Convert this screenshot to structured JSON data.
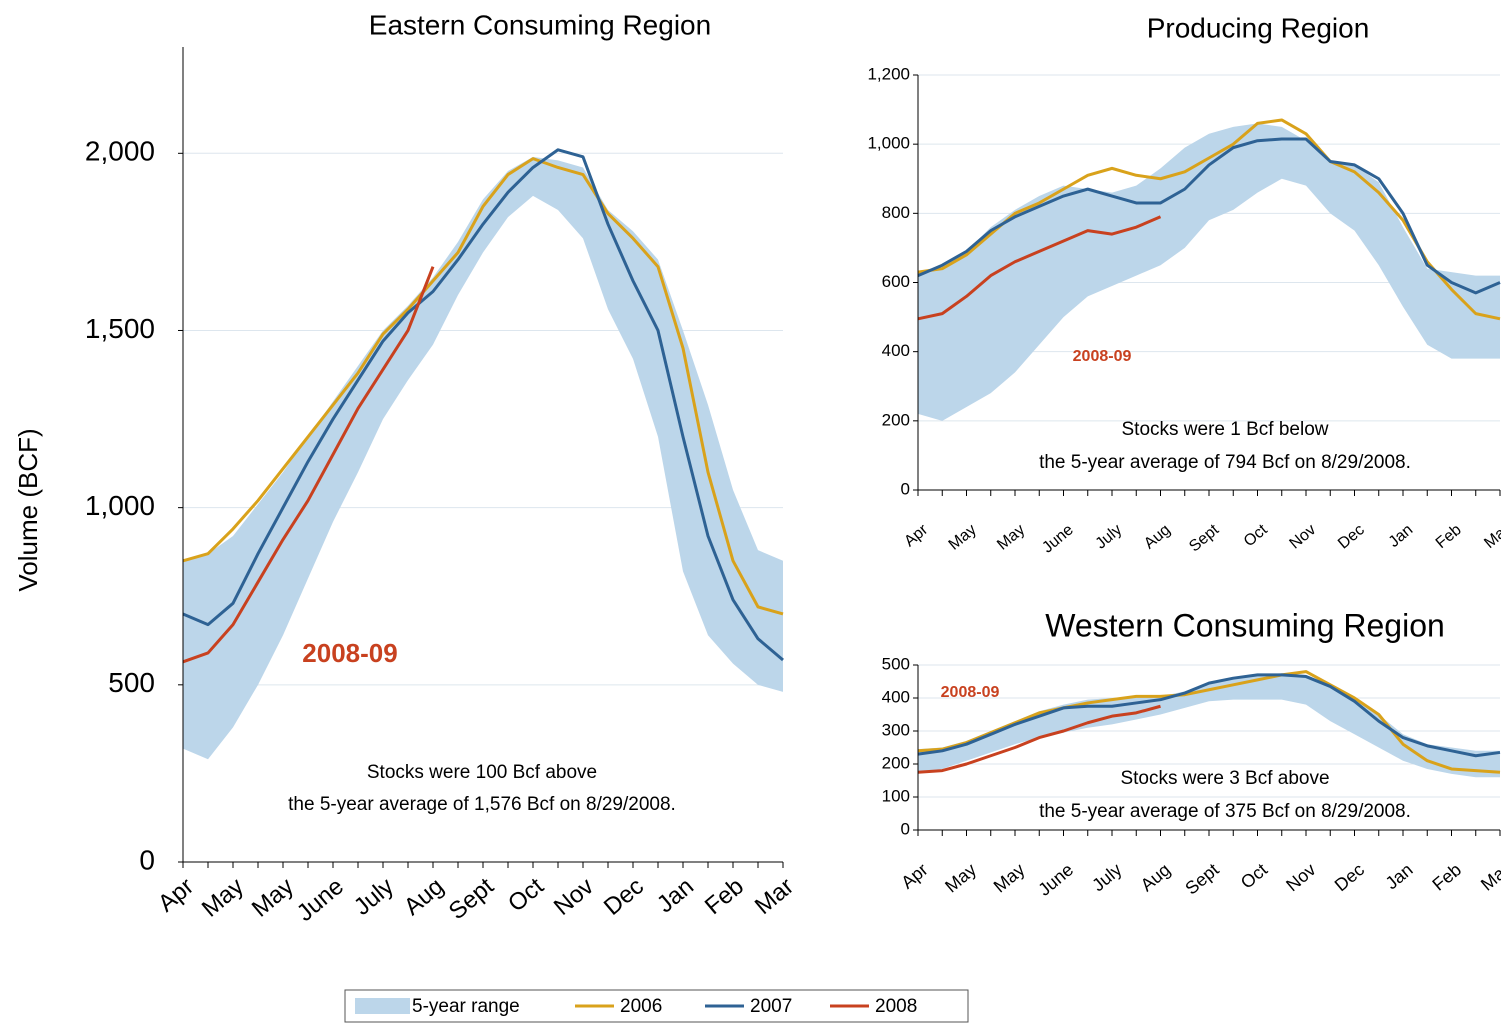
{
  "chart_data": [
    {
      "type": "line",
      "title": "Eastern Consuming Region",
      "y_label": "Volume (BCF)",
      "categories": [
        "Apr",
        null,
        "May",
        null,
        "May",
        null,
        "June",
        null,
        "July",
        null,
        "Aug",
        null,
        "Sept",
        null,
        "Oct",
        null,
        "Nov",
        null,
        "Dec",
        null,
        "Jan",
        null,
        "Feb",
        null,
        "Mar"
      ],
      "ylim": [
        0,
        2300
      ],
      "yticks": [
        0,
        500,
        {
          "value": 1000,
          "label": "1,000"
        },
        {
          "value": 1500,
          "label": "1,500"
        },
        {
          "value": 2000,
          "label": "2,000"
        }
      ],
      "grid": true,
      "series": [
        {
          "name": "5-year range",
          "color": "#bcd6ea",
          "kind": "range",
          "low": [
            320,
            290,
            380,
            500,
            640,
            800,
            960,
            1100,
            1250,
            1360,
            1460,
            1600,
            1720,
            1820,
            1880,
            1840,
            1760,
            1560,
            1420,
            1200,
            820,
            640,
            560,
            500,
            480
          ],
          "high": [
            850,
            870,
            920,
            1010,
            1100,
            1200,
            1300,
            1400,
            1500,
            1570,
            1650,
            1750,
            1870,
            1950,
            1990,
            1980,
            1960,
            1840,
            1780,
            1700,
            1500,
            1290,
            1050,
            880,
            850
          ]
        },
        {
          "name": "2006",
          "color": "#d9a21b",
          "values": [
            850,
            870,
            940,
            1020,
            1110,
            1200,
            1290,
            1380,
            1490,
            1560,
            1640,
            1720,
            1850,
            1940,
            1985,
            1960,
            1940,
            1830,
            1760,
            1680,
            1450,
            1100,
            850,
            720,
            700
          ]
        },
        {
          "name": "2007",
          "color": "#2e6294",
          "values": [
            700,
            670,
            730,
            870,
            1000,
            1130,
            1250,
            1360,
            1470,
            1550,
            1610,
            1700,
            1800,
            1890,
            1960,
            2010,
            1990,
            1800,
            1640,
            1500,
            1200,
            920,
            740,
            630,
            570
          ]
        },
        {
          "name": "2008",
          "color": "#c8411f",
          "values": [
            565,
            590,
            670,
            790,
            910,
            1020,
            1150,
            1280,
            1390,
            1500,
            1680,
            null,
            null,
            null,
            null,
            null,
            null,
            null,
            null,
            null,
            null,
            null,
            null,
            null,
            null
          ]
        }
      ],
      "series_label": "2008-09",
      "note": [
        "Stocks were 100 Bcf above",
        "the 5-year average of 1,576 Bcf on 8/29/2008."
      ]
    },
    {
      "type": "line",
      "title": "Producing Region",
      "categories": [
        "Apr",
        null,
        "May",
        null,
        "May",
        null,
        "June",
        null,
        "July",
        null,
        "Aug",
        null,
        "Sept",
        null,
        "Oct",
        null,
        "Nov",
        null,
        "Dec",
        null,
        "Jan",
        null,
        "Feb",
        null,
        "Mar"
      ],
      "ylim": [
        0,
        1200
      ],
      "yticks": [
        0,
        200,
        400,
        600,
        800,
        {
          "value": 1000,
          "label": "1,000"
        },
        {
          "value": 1200,
          "label": "1,200"
        }
      ],
      "grid": true,
      "series": [
        {
          "color": "#bcd6ea",
          "kind": "range",
          "low": [
            220,
            200,
            240,
            280,
            340,
            420,
            500,
            560,
            590,
            620,
            650,
            700,
            780,
            810,
            860,
            900,
            880,
            800,
            750,
            650,
            530,
            420,
            380,
            380,
            380
          ],
          "high": [
            630,
            640,
            690,
            760,
            810,
            850,
            880,
            870,
            860,
            880,
            930,
            990,
            1030,
            1050,
            1060,
            1050,
            1010,
            950,
            940,
            890,
            760,
            640,
            630,
            620,
            620
          ]
        },
        {
          "color": "#d9a21b",
          "values": [
            630,
            640,
            680,
            740,
            800,
            830,
            870,
            910,
            930,
            910,
            900,
            920,
            960,
            1000,
            1060,
            1070,
            1030,
            950,
            920,
            860,
            780,
            660,
            580,
            510,
            495
          ]
        },
        {
          "color": "#2e6294",
          "values": [
            620,
            650,
            690,
            750,
            790,
            820,
            850,
            870,
            850,
            830,
            830,
            870,
            940,
            990,
            1010,
            1015,
            1015,
            950,
            940,
            900,
            800,
            650,
            600,
            570,
            600
          ]
        },
        {
          "color": "#c8411f",
          "values": [
            495,
            510,
            560,
            620,
            660,
            690,
            720,
            750,
            740,
            760,
            790,
            null,
            null,
            null,
            null,
            null,
            null,
            null,
            null,
            null,
            null,
            null,
            null,
            null,
            null
          ]
        }
      ],
      "series_label": "2008-09",
      "note": [
        "Stocks were 1 Bcf below",
        "the 5-year average of 794 Bcf on 8/29/2008."
      ]
    },
    {
      "type": "line",
      "title": "Western Consuming Region",
      "categories": [
        "Apr",
        null,
        "May",
        null,
        "May",
        null,
        "June",
        null,
        "July",
        null,
        "Aug",
        null,
        "Sept",
        null,
        "Oct",
        null,
        "Nov",
        null,
        "Dec",
        null,
        "Jan",
        null,
        "Feb",
        null,
        "Mar"
      ],
      "ylim": [
        0,
        500
      ],
      "yticks": [
        0,
        100,
        200,
        300,
        400,
        500
      ],
      "grid": true,
      "series": [
        {
          "color": "#bcd6ea",
          "kind": "range",
          "low": [
            175,
            185,
            210,
            235,
            260,
            280,
            295,
            310,
            320,
            335,
            350,
            370,
            390,
            395,
            395,
            395,
            380,
            330,
            290,
            250,
            210,
            185,
            170,
            160,
            160
          ],
          "high": [
            245,
            250,
            270,
            300,
            330,
            360,
            380,
            395,
            400,
            405,
            405,
            420,
            440,
            460,
            470,
            475,
            470,
            440,
            400,
            350,
            290,
            260,
            250,
            240,
            240
          ]
        },
        {
          "color": "#d9a21b",
          "values": [
            240,
            245,
            265,
            295,
            325,
            355,
            370,
            385,
            395,
            405,
            405,
            410,
            425,
            440,
            455,
            470,
            480,
            440,
            400,
            350,
            260,
            210,
            185,
            180,
            175
          ]
        },
        {
          "color": "#2e6294",
          "values": [
            230,
            240,
            260,
            290,
            320,
            345,
            370,
            375,
            375,
            385,
            395,
            415,
            445,
            460,
            470,
            470,
            465,
            435,
            390,
            330,
            280,
            255,
            240,
            225,
            235
          ]
        },
        {
          "color": "#c8411f",
          "values": [
            175,
            180,
            200,
            225,
            250,
            280,
            300,
            325,
            345,
            355,
            375,
            null,
            null,
            null,
            null,
            null,
            null,
            null,
            null,
            null,
            null,
            null,
            null,
            null,
            null
          ]
        }
      ],
      "series_label": "2008-09",
      "note": [
        "Stocks were 3 Bcf above",
        "the 5-year average of 375 Bcf on 8/29/2008."
      ]
    }
  ]
}
